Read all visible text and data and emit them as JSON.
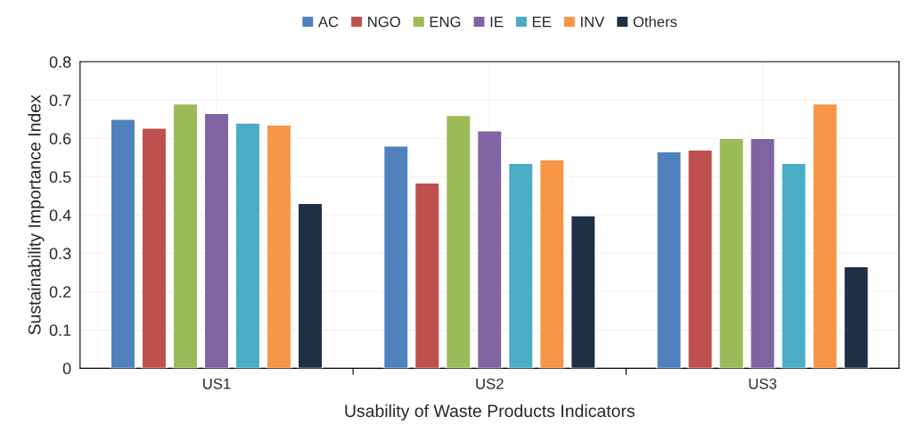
{
  "chart_data": {
    "type": "bar",
    "xlabel": "Usability of Waste Products Indicators",
    "ylabel": "Sustainability Importance Index",
    "categories": [
      "US1",
      "US2",
      "US3"
    ],
    "series": [
      {
        "name": "AC",
        "color": "#4f81bd",
        "values": [
          0.65,
          0.58,
          0.565
        ]
      },
      {
        "name": "NGO",
        "color": "#c0504d",
        "values": [
          0.627,
          0.484,
          0.57
        ]
      },
      {
        "name": "ENG",
        "color": "#9bbb59",
        "values": [
          0.69,
          0.66,
          0.6
        ]
      },
      {
        "name": "IE",
        "color": "#8064a2",
        "values": [
          0.665,
          0.62,
          0.6
        ]
      },
      {
        "name": "EE",
        "color": "#4bacc6",
        "values": [
          0.64,
          0.535,
          0.535
        ]
      },
      {
        "name": "INV",
        "color": "#f79646",
        "values": [
          0.635,
          0.544,
          0.69
        ]
      },
      {
        "name": "Others",
        "color": "#1f2f46",
        "values": [
          0.43,
          0.398,
          0.265
        ]
      }
    ],
    "ylim": [
      0,
      0.8
    ],
    "yticks": [
      0,
      0.1,
      0.2,
      0.3,
      0.4,
      0.5,
      0.6,
      0.7,
      0.8
    ],
    "grid": true,
    "legend": "top"
  }
}
